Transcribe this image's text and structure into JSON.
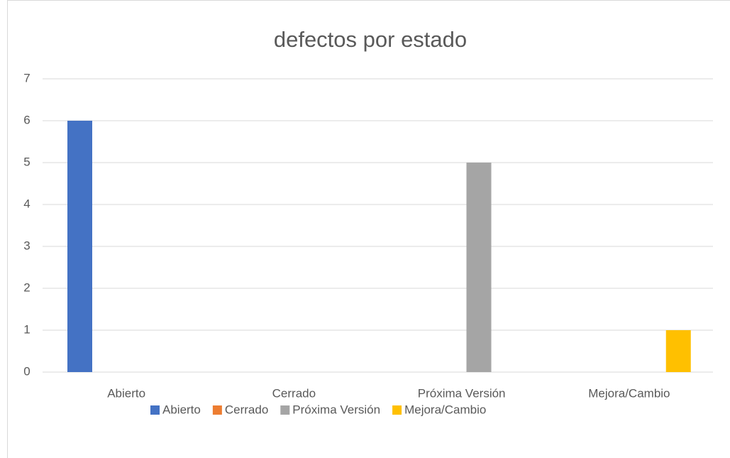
{
  "chart_data": {
    "type": "bar",
    "title": "defectos por estado",
    "categories": [
      "Abierto",
      "Cerrado",
      "Próxima Versión",
      "Mejora/Cambio"
    ],
    "series": [
      {
        "name": "Abierto",
        "color": "#4472c4",
        "values": [
          6,
          null,
          null,
          null
        ]
      },
      {
        "name": "Cerrado",
        "color": "#ed7d31",
        "values": [
          null,
          0,
          null,
          null
        ]
      },
      {
        "name": "Próxima Versión",
        "color": "#a5a5a5",
        "values": [
          null,
          null,
          5,
          null
        ]
      },
      {
        "name": "Mejora/Cambio",
        "color": "#ffc000",
        "values": [
          null,
          null,
          null,
          1
        ]
      }
    ],
    "ylim": [
      0,
      7
    ],
    "yticks": [
      0,
      1,
      2,
      3,
      4,
      5,
      6,
      7
    ],
    "grid": true,
    "legend": "bottom"
  }
}
